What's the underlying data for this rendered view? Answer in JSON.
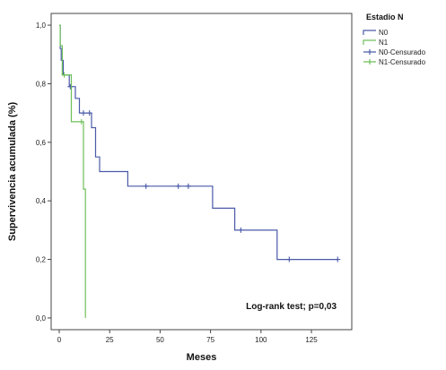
{
  "chart_data": {
    "type": "line",
    "subtype": "kaplan-meier",
    "xlabel": "Meses",
    "ylabel": "Supervivencia acumulada (%)",
    "xlim": [
      -4,
      145
    ],
    "ylim": [
      -0.04,
      1.04
    ],
    "x_ticks": [
      0,
      25,
      50,
      75,
      100,
      125
    ],
    "x_tick_labels": [
      "0",
      "25",
      "50",
      "75",
      "100",
      "125"
    ],
    "y_ticks": [
      0.0,
      0.2,
      0.4,
      0.6,
      0.8,
      1.0
    ],
    "y_tick_labels": [
      "0,0",
      "0,2",
      "0,4",
      "0,6",
      "0,8",
      "1,0"
    ],
    "grid": false,
    "legend": {
      "title": "Estadio N",
      "placement": "right",
      "entries": [
        "N0",
        "N1",
        "N0-Censurado",
        "N1-Censurado"
      ]
    },
    "annotation": "Log-rank test; p=0,03",
    "series": [
      {
        "name": "N0",
        "color": "#4a5aa8",
        "steps": [
          [
            0,
            1.0
          ],
          [
            0.5,
            0.92
          ],
          [
            1,
            0.88
          ],
          [
            2,
            0.83
          ],
          [
            5,
            0.79
          ],
          [
            8,
            0.75
          ],
          [
            10,
            0.7
          ],
          [
            16,
            0.65
          ],
          [
            18,
            0.55
          ],
          [
            20,
            0.5
          ],
          [
            34,
            0.45
          ],
          [
            76,
            0.375
          ],
          [
            87,
            0.3
          ],
          [
            108,
            0.2
          ],
          [
            138,
            0.2
          ]
        ],
        "censored": [
          [
            5.5,
            0.79
          ],
          [
            12,
            0.7
          ],
          [
            15,
            0.7
          ],
          [
            43,
            0.45
          ],
          [
            59,
            0.45
          ],
          [
            64,
            0.45
          ],
          [
            90,
            0.3
          ],
          [
            114,
            0.2
          ],
          [
            138,
            0.2
          ]
        ]
      },
      {
        "name": "N1",
        "color": "#6fbf5a",
        "steps": [
          [
            0,
            1.0
          ],
          [
            0.5,
            0.93
          ],
          [
            1.5,
            0.83
          ],
          [
            6,
            0.67
          ],
          [
            12,
            0.44
          ],
          [
            13,
            0.0
          ]
        ],
        "censored": [
          [
            2.5,
            0.83
          ],
          [
            11,
            0.67
          ]
        ]
      }
    ]
  }
}
